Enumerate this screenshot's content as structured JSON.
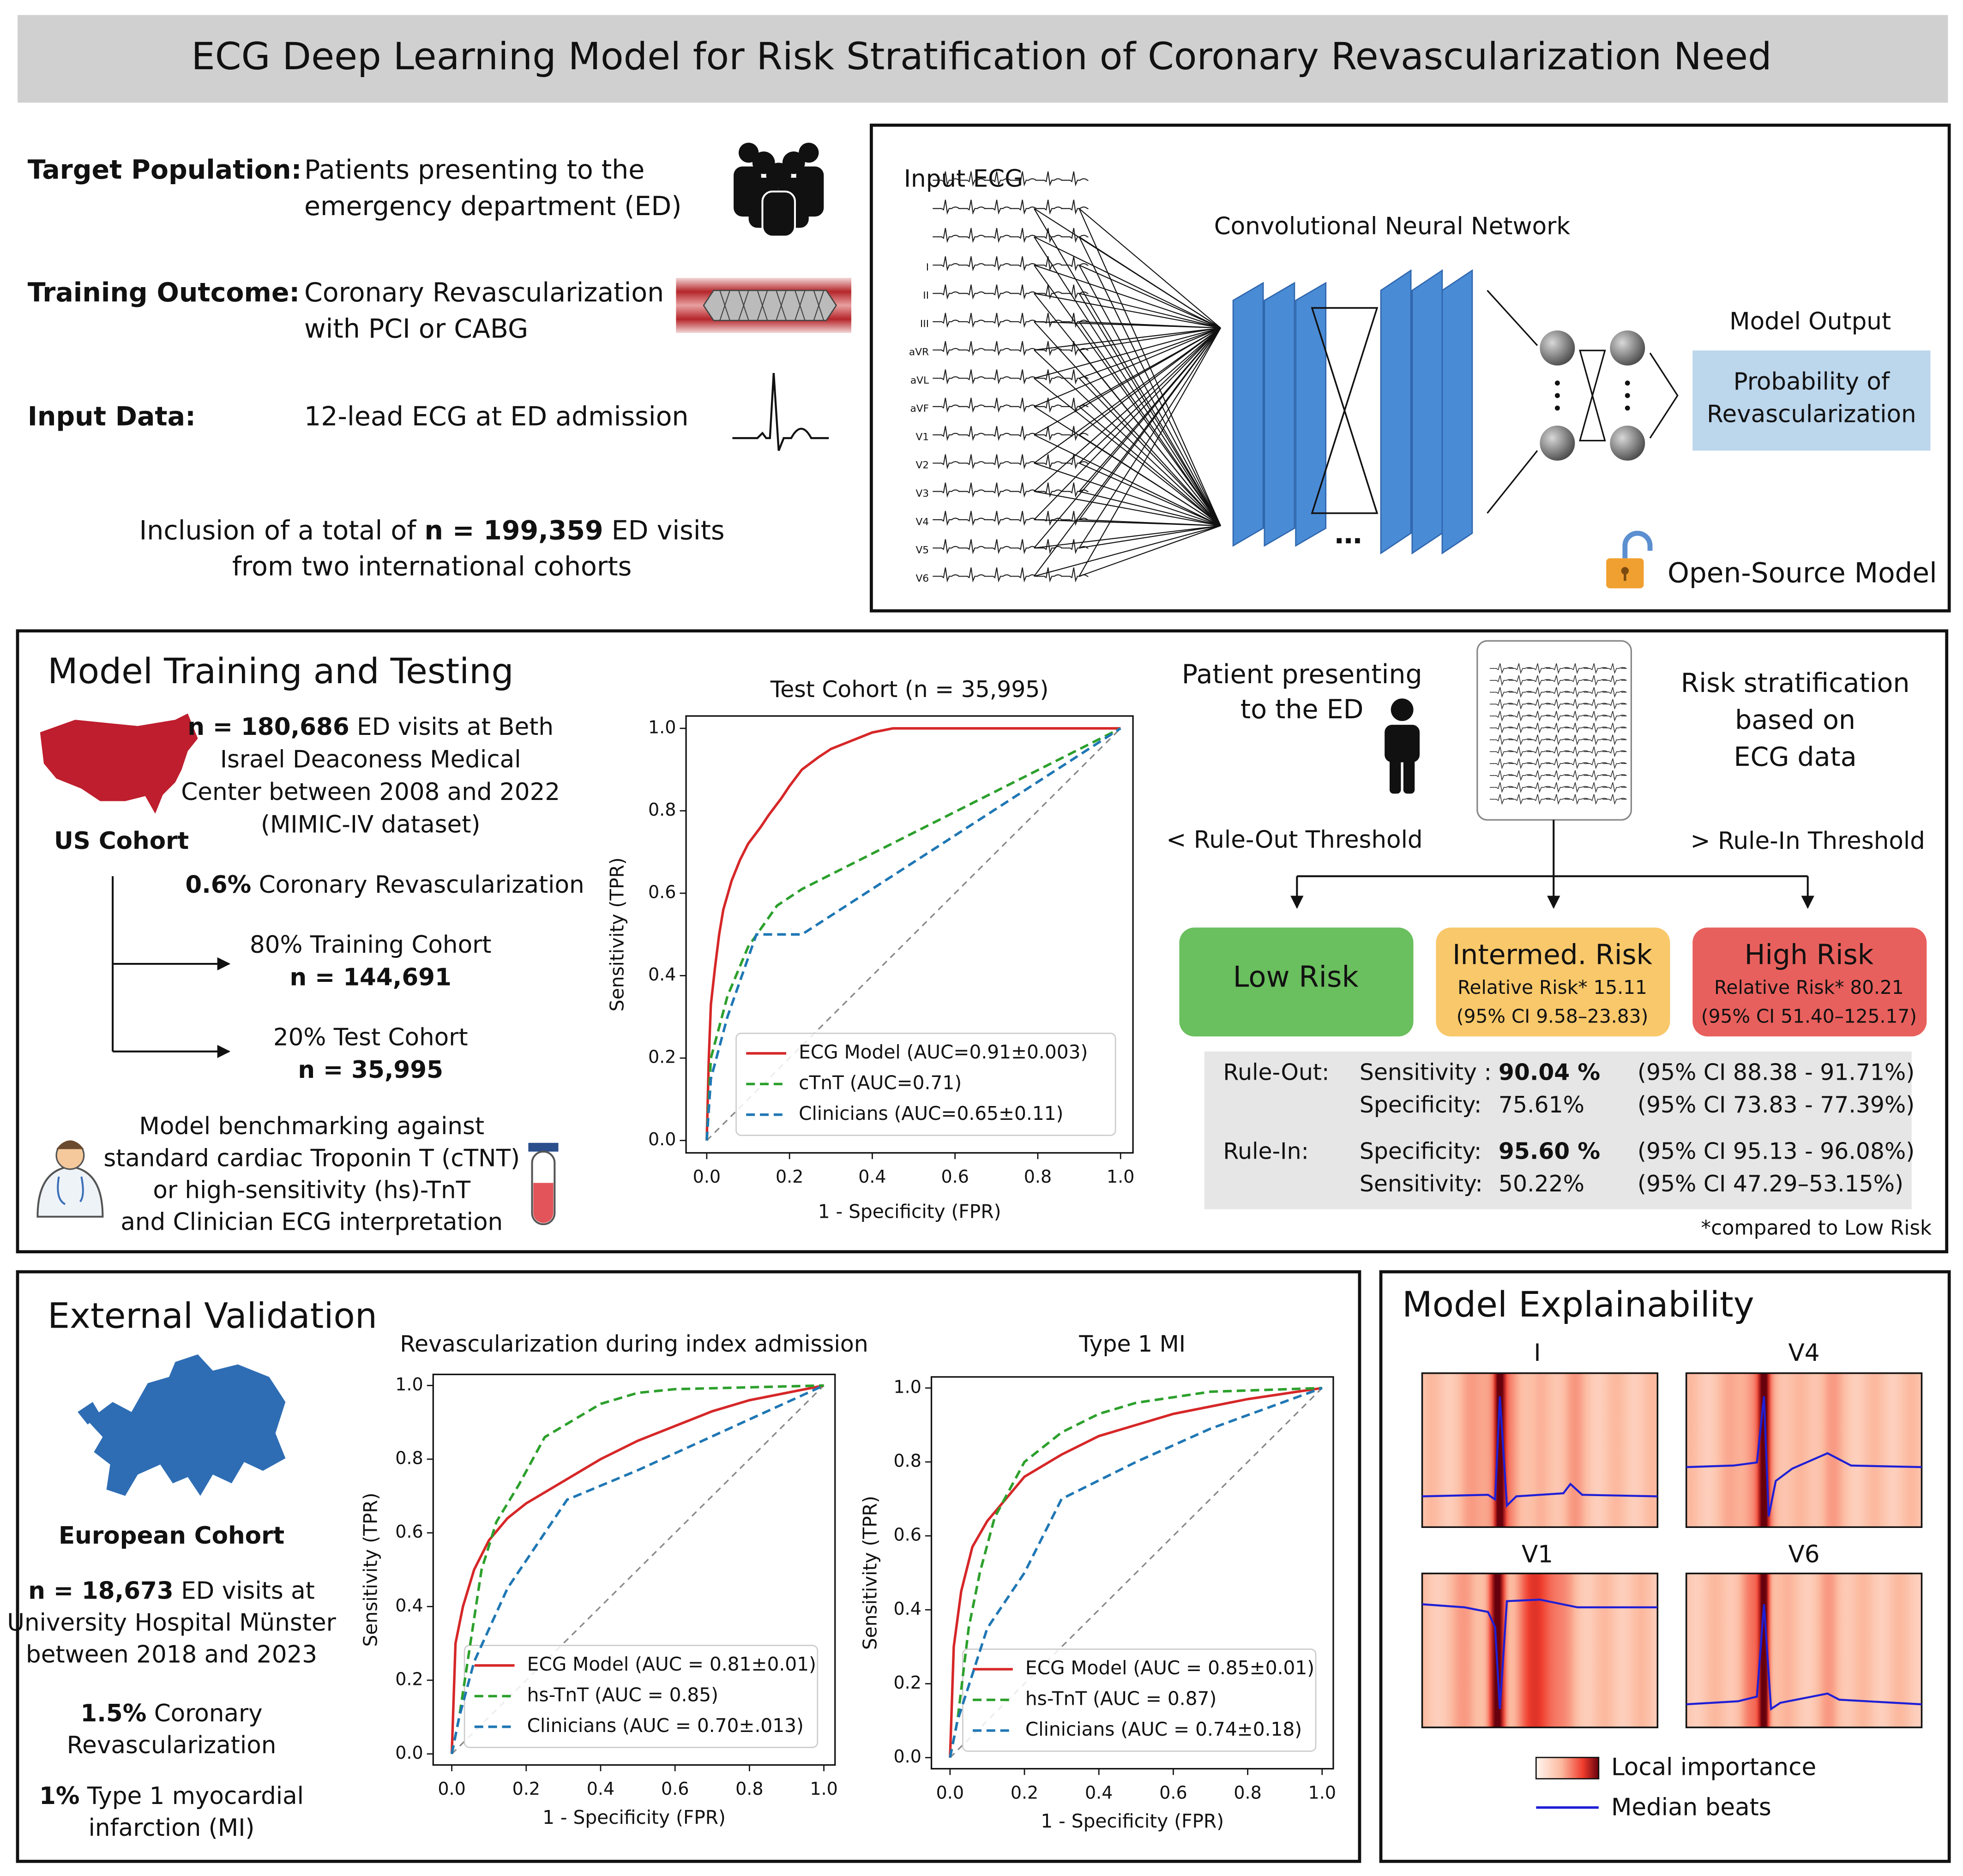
{
  "title": "ECG Deep Learning Model for Risk Stratification of Coronary Revascularization Need",
  "overview": {
    "items": [
      {
        "label": "Target Population:",
        "lines": [
          "Patients presenting to the",
          "emergency department (ED)"
        ]
      },
      {
        "label": "Training Outcome:",
        "lines": [
          "Coronary Revascularization",
          "with PCI or CABG"
        ]
      },
      {
        "label": "Input Data:",
        "lines": [
          "12-lead ECG at ED admission"
        ]
      }
    ],
    "inclusion": [
      [
        "Inclusion of a total of ",
        {
          "text": "n = 199,359",
          "bold": true
        },
        " ED visits"
      ],
      "from two international cohorts"
    ]
  },
  "model": {
    "input_label": "Input ECG",
    "leads": [
      "I",
      "II",
      "III",
      "aVR",
      "aVL",
      "aVF",
      "V1",
      "V2",
      "V3",
      "V4",
      "V5",
      "V6"
    ],
    "network_label": "Convolutional Neural Network",
    "output_label": "Model Output",
    "output_lines": [
      "Probability of",
      "Revascularization"
    ],
    "open_source": "Open-Source Model"
  },
  "training": {
    "heading": "Model Training and Testing",
    "us_lines": [
      [
        {
          "text": "n = 180,686",
          "bold": true
        },
        " ED visits at Beth"
      ],
      "Israel Deaconess Medical",
      "Center between 2008 and 2022",
      "(MIMIC-IV dataset)"
    ],
    "us_label": "US Cohort",
    "prevalence": [
      {
        "text": "0.6%",
        "bold": true
      },
      " Coronary Revascularization"
    ],
    "train_split": [
      "80% Training Cohort",
      "n = 144,691"
    ],
    "test_split": [
      "20% Test Cohort",
      "n = 35,995"
    ],
    "benchmark": [
      "Model benchmarking against",
      "standard cardiac Troponin T (cTNT)",
      "or high-sensitivity (hs)-TnT",
      "and Clinician ECG interpretation"
    ]
  },
  "risk": {
    "patient_lines": [
      "Patient presenting",
      "to the ED"
    ],
    "strat_lines": [
      "Risk stratification",
      "based on",
      "ECG data"
    ],
    "rule_out_threshold": "< Rule-Out Threshold",
    "rule_in_threshold": "> Rule-In Threshold",
    "groups": [
      {
        "name": "Low Risk",
        "color": "#6abf5e"
      },
      {
        "name": "Intermed. Risk",
        "rr": "Relative Risk* 15.11",
        "ci": "(95% CI 9.58–23.83)",
        "color": "#f9c86a"
      },
      {
        "name": "High Risk",
        "rr": "Relative Risk* 80.21",
        "ci": "(95% CI 51.40–125.17)",
        "color": "#e8605d"
      }
    ],
    "stats": [
      {
        "rule": "Rule-Out:",
        "rows": [
          [
            "Sensitivity :",
            "90.04 %",
            "(95% CI 88.38 - 91.71%)"
          ],
          [
            "Specificity:",
            "75.61%",
            "(95% CI 73.83 - 77.39%)"
          ]
        ]
      },
      {
        "rule": "Rule-In:",
        "rows": [
          [
            "Specificity:",
            "95.60 %",
            "(95% CI 95.13 - 96.08%)"
          ],
          [
            "Sensitivity:",
            "50.22%",
            "(95% CI 47.29–53.15%)"
          ]
        ]
      }
    ],
    "footnote": "*compared to Low Risk"
  },
  "validation": {
    "heading": "External Validation",
    "cohort": "European Cohort",
    "lines": [
      [
        {
          "text": "n = 18,673",
          "bold": true
        },
        " ED visits at"
      ],
      "University Hospital Münster",
      "between 2018 and 2023"
    ],
    "prevalence": [
      [
        {
          "text": "1.5%",
          "bold": true
        },
        " Coronary"
      ],
      "Revascularization"
    ],
    "mi": [
      [
        {
          "text": "1%",
          "bold": true
        },
        " Type 1 myocardial"
      ],
      "infarction (MI)"
    ]
  },
  "explainability": {
    "heading": "Model Explainability",
    "leads": [
      "I",
      "V4",
      "V1",
      "V6"
    ],
    "legend_importance": "Local importance",
    "legend_beats": "Median beats"
  },
  "chart_data": [
    {
      "type": "line",
      "title": "Test Cohort (n = 35,995)",
      "xlabel": "1 - Specificity (FPR)",
      "ylabel": "Sensitivity (TPR)",
      "xlim": [
        -0.05,
        1.03
      ],
      "ylim": [
        -0.03,
        1.03
      ],
      "xticks": [
        {
          "value": 0,
          "label": "0.0"
        },
        0.2,
        0.4,
        0.6,
        0.8,
        {
          "value": 1,
          "label": "1.0"
        }
      ],
      "yticks": [
        {
          "value": 0,
          "label": "0.0"
        },
        0.2,
        0.4,
        0.6,
        0.8,
        {
          "value": 1,
          "label": "1.0"
        }
      ],
      "series": [
        {
          "name": "ECG Model (AUC=0.91±0.003)",
          "color": "#d62728",
          "linestyle": "solid",
          "x": [
            0,
            0.005,
            0.01,
            0.02,
            0.03,
            0.04,
            0.06,
            0.08,
            0.1,
            0.13,
            0.15,
            0.18,
            0.2,
            0.23,
            0.27,
            0.3,
            0.35,
            0.4,
            0.45,
            1
          ],
          "values": [
            0,
            0.2,
            0.33,
            0.42,
            0.5,
            0.56,
            0.63,
            0.68,
            0.72,
            0.76,
            0.79,
            0.83,
            0.86,
            0.9,
            0.93,
            0.95,
            0.97,
            0.99,
            1,
            1
          ]
        },
        {
          "name": "cTnT (AUC=0.71)",
          "color": "#2ca02c",
          "linestyle": "dashed",
          "x": [
            0,
            0.01,
            0.05,
            0.1,
            0.17,
            0.23,
            1
          ],
          "values": [
            0,
            0.2,
            0.35,
            0.47,
            0.57,
            0.61,
            1
          ]
        },
        {
          "name": "Clinicians (AUC=0.65±0.11)",
          "color": "#1f77b4",
          "linestyle": "dashed",
          "x": [
            0,
            0.01,
            0.05,
            0.12,
            0.23,
            1
          ],
          "values": [
            0,
            0.15,
            0.3,
            0.5,
            0.5,
            1
          ]
        }
      ]
    },
    {
      "type": "line",
      "title": "Revascularization during index admission",
      "xlabel": "1 - Specificity (FPR)",
      "ylabel": "Sensitivity (TPR)",
      "xlim": [
        -0.05,
        1.03
      ],
      "ylim": [
        -0.03,
        1.03
      ],
      "xticks": [
        {
          "value": 0,
          "label": "0.0"
        },
        0.2,
        0.4,
        0.6,
        0.8,
        {
          "value": 1,
          "label": "1.0"
        }
      ],
      "yticks": [
        {
          "value": 0,
          "label": "0.0"
        },
        0.2,
        0.4,
        0.6,
        0.8,
        {
          "value": 1,
          "label": "1.0"
        }
      ],
      "series": [
        {
          "name": "ECG Model (AUC = 0.81±0.01)",
          "color": "#d62728",
          "linestyle": "solid",
          "x": [
            0,
            0.01,
            0.03,
            0.06,
            0.1,
            0.15,
            0.2,
            0.3,
            0.4,
            0.5,
            0.6,
            0.7,
            0.8,
            0.9,
            1
          ],
          "values": [
            0,
            0.3,
            0.4,
            0.5,
            0.58,
            0.64,
            0.68,
            0.74,
            0.8,
            0.85,
            0.89,
            0.93,
            0.96,
            0.98,
            1
          ]
        },
        {
          "name": "hs-TnT (AUC = 0.85)",
          "color": "#2ca02c",
          "linestyle": "dashed",
          "x": [
            0,
            0.02,
            0.05,
            0.08,
            0.12,
            0.18,
            0.25,
            0.3,
            0.4,
            0.5,
            0.6,
            1
          ],
          "values": [
            0,
            0.1,
            0.3,
            0.5,
            0.63,
            0.73,
            0.86,
            0.89,
            0.95,
            0.98,
            0.99,
            1
          ]
        },
        {
          "name": "Clinicians (AUC = 0.70±.013)",
          "color": "#1f77b4",
          "linestyle": "dashed",
          "x": [
            0,
            0.02,
            0.06,
            0.15,
            0.31,
            0.5,
            1
          ],
          "values": [
            0,
            0.1,
            0.25,
            0.45,
            0.69,
            0.77,
            1
          ]
        }
      ]
    },
    {
      "type": "line",
      "title": "Type 1 MI",
      "xlabel": "1 - Specificity (FPR)",
      "ylabel": "Sensitivity (TPR)",
      "xlim": [
        -0.05,
        1.03
      ],
      "ylim": [
        -0.03,
        1.03
      ],
      "xticks": [
        {
          "value": 0,
          "label": "0.0"
        },
        0.2,
        0.4,
        0.6,
        0.8,
        {
          "value": 1,
          "label": "1.0"
        }
      ],
      "yticks": [
        {
          "value": 0,
          "label": "0.0"
        },
        0.2,
        0.4,
        0.6,
        0.8,
        {
          "value": 1,
          "label": "1.0"
        }
      ],
      "series": [
        {
          "name": "ECG Model (AUC = 0.85±0.01)",
          "color": "#d62728",
          "linestyle": "solid",
          "x": [
            0,
            0.01,
            0.03,
            0.06,
            0.1,
            0.15,
            0.2,
            0.3,
            0.4,
            0.5,
            0.6,
            0.8,
            1
          ],
          "values": [
            0,
            0.3,
            0.45,
            0.57,
            0.64,
            0.7,
            0.76,
            0.82,
            0.87,
            0.9,
            0.93,
            0.97,
            1
          ]
        },
        {
          "name": "hs-TnT (AUC = 0.87)",
          "color": "#2ca02c",
          "linestyle": "dashed",
          "x": [
            0,
            0.02,
            0.05,
            0.08,
            0.12,
            0.2,
            0.3,
            0.4,
            0.5,
            0.7,
            1
          ],
          "values": [
            0,
            0.1,
            0.35,
            0.5,
            0.65,
            0.8,
            0.88,
            0.93,
            0.96,
            0.99,
            1
          ]
        },
        {
          "name": "Clinicians (AUC = 0.74±0.18)",
          "color": "#1f77b4",
          "linestyle": "dashed",
          "x": [
            0,
            0.02,
            0.1,
            0.2,
            0.3,
            0.5,
            0.7,
            1
          ],
          "values": [
            0,
            0.1,
            0.35,
            0.5,
            0.7,
            0.8,
            0.89,
            1
          ]
        }
      ]
    }
  ]
}
